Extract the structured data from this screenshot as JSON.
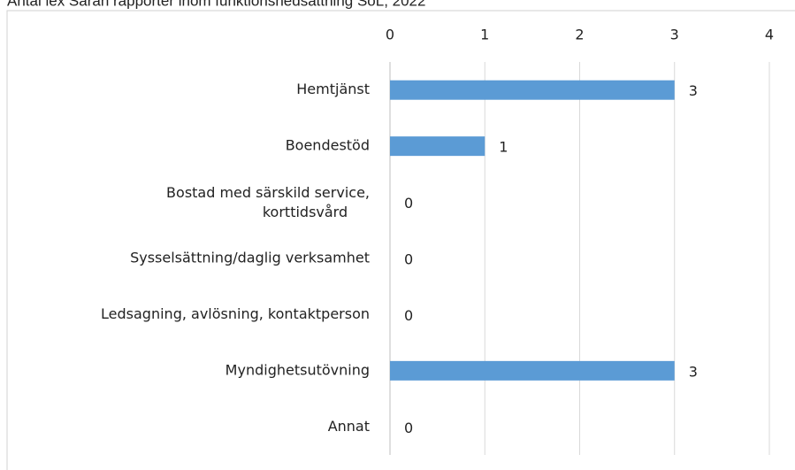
{
  "chart_data": {
    "type": "bar",
    "orientation": "horizontal",
    "title": "Antal lex Sarah rapporter inom funktionshedsättning SoL, 2022",
    "categories": [
      "Hemtjänst",
      "Boendestöd",
      "Bostad med särskild service, korttidsvård",
      "Sysselsättning/daglig verksamhet",
      "Ledsagning, avlösning, kontaktperson",
      "Myndighetsutövning",
      "Annat"
    ],
    "values": [
      3,
      1,
      0,
      0,
      0,
      3,
      0
    ],
    "color": "#5b9bd5",
    "xlim": [
      0,
      4
    ],
    "xticks": [
      0,
      1,
      2,
      3,
      4
    ],
    "grid": true
  }
}
